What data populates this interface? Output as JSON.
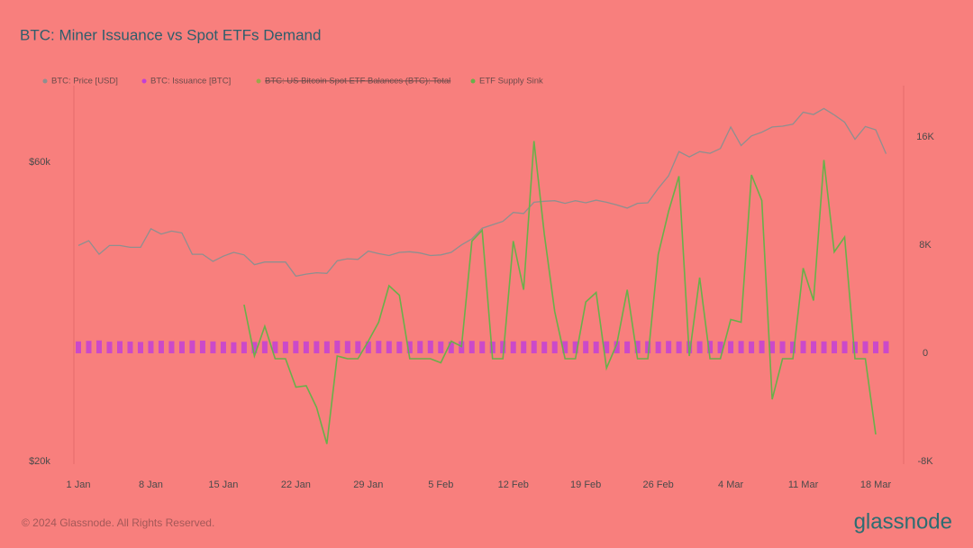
{
  "chart_data": {
    "type": "line",
    "title": "BTC: Miner Issuance vs Spot ETFs Demand",
    "footer": "© 2024 Glassnode. All Rights Reserved.",
    "brand": "glassnode",
    "categories": [
      "1 Jan",
      null,
      null,
      null,
      null,
      null,
      null,
      "8 Jan",
      null,
      null,
      null,
      null,
      null,
      null,
      "15 Jan",
      null,
      null,
      null,
      null,
      null,
      null,
      "22 Jan",
      null,
      null,
      null,
      null,
      null,
      null,
      "29 Jan",
      null,
      null,
      null,
      null,
      null,
      null,
      "5 Feb",
      null,
      null,
      null,
      null,
      null,
      null,
      "12 Feb",
      null,
      null,
      null,
      null,
      null,
      null,
      "19 Feb",
      null,
      null,
      null,
      null,
      null,
      null,
      "26 Feb",
      null,
      null,
      null,
      null,
      null,
      null,
      "4 Mar",
      null,
      null,
      null,
      null,
      null,
      null,
      "11 Mar",
      null,
      null,
      null,
      null,
      null,
      null,
      "18 Mar",
      null
    ],
    "ylim": [
      20000,
      79500
    ],
    "yscale": "log",
    "yticks": [
      {
        "value": 20000,
        "label": "$20k"
      },
      {
        "value": 60000,
        "label": "$60k"
      }
    ],
    "y2lim": [
      -8000,
      19800
    ],
    "y2ticks": [
      {
        "value": -8000,
        "label": "-8K"
      },
      0,
      {
        "value": 8000,
        "label": "8K"
      },
      {
        "value": 16000,
        "label": "16K"
      }
    ],
    "series": [
      {
        "name": "BTC: Price [USD]",
        "type": "line",
        "axis": "y",
        "color": "#8f8f8f",
        "values": [
          44200,
          45000,
          42800,
          44200,
          44200,
          43900,
          43900,
          47000,
          46100,
          46600,
          46300,
          42800,
          42800,
          41700,
          42500,
          43100,
          42700,
          41200,
          41600,
          41600,
          41600,
          39500,
          39800,
          40000,
          39900,
          41800,
          42100,
          42000,
          43300,
          42900,
          42600,
          43100,
          43200,
          43000,
          42600,
          42700,
          43100,
          44300,
          45300,
          47100,
          47700,
          48300,
          49900,
          49700,
          51800,
          52000,
          52100,
          51600,
          52100,
          51700,
          52200,
          51800,
          51300,
          50700,
          51600,
          51700,
          54500,
          57100,
          62400,
          61200,
          62400,
          62000,
          63100,
          68300,
          63800,
          66100,
          67000,
          68300,
          68500,
          69000,
          72100,
          71500,
          73100,
          71400,
          69500,
          65300,
          68400,
          67600,
          61900
        ]
      },
      {
        "name": "BTC: Issuance [BTC]",
        "type": "bar",
        "axis": "y2",
        "color": "#c33fd6",
        "values": [
          880,
          920,
          950,
          860,
          900,
          870,
          840,
          910,
          930,
          900,
          890,
          950,
          940,
          880,
          860,
          820,
          850,
          840,
          900,
          880,
          870,
          920,
          880,
          900,
          890,
          940,
          910,
          900,
          880,
          920,
          900,
          870,
          890,
          910,
          940,
          880,
          860,
          900,
          920,
          890,
          870,
          910,
          880,
          900,
          930,
          860,
          890,
          900,
          880,
          910,
          870,
          890,
          900,
          880,
          920,
          900,
          870,
          910,
          880,
          900,
          890,
          920,
          870,
          900,
          910,
          880,
          940,
          900,
          890,
          870,
          920,
          900,
          880,
          910,
          900,
          870,
          890,
          880,
          900
        ]
      },
      {
        "name": "BTC: US Bitcoin Spot ETF Balances (BTC): Total",
        "type": "line",
        "axis": "y2",
        "color": "#9aa84a",
        "hidden": true
      },
      {
        "name": "ETF Supply Sink",
        "type": "line",
        "axis": "y2",
        "color": "#69b04a",
        "values": [
          null,
          null,
          null,
          null,
          null,
          null,
          null,
          null,
          null,
          null,
          null,
          null,
          null,
          null,
          null,
          null,
          3600,
          -200,
          2000,
          -400,
          -400,
          -2500,
          -2400,
          -4000,
          -6700,
          -200,
          -400,
          -400,
          900,
          2300,
          5000,
          4300,
          -400,
          -400,
          -400,
          -700,
          900,
          500,
          8300,
          9100,
          -400,
          -400,
          8300,
          4700,
          15700,
          8800,
          3100,
          -400,
          -400,
          3800,
          4500,
          -1100,
          700,
          4700,
          -400,
          -400,
          7300,
          10500,
          13100,
          -200,
          5600,
          -400,
          -400,
          2500,
          2300,
          13200,
          11300,
          -3400,
          -400,
          -400,
          6300,
          3900,
          14300,
          7500,
          8600,
          -400,
          -400,
          -6000,
          null
        ]
      }
    ]
  }
}
